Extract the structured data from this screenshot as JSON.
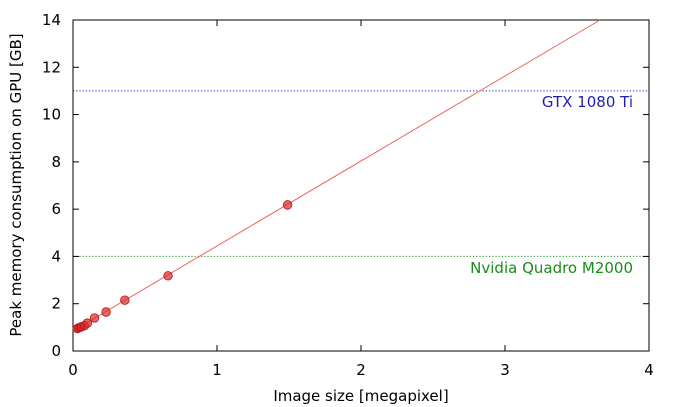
{
  "chart_data": {
    "type": "scatter",
    "xlabel": "Image size  [megapixel]",
    "ylabel": "Peak memory consumption on GPU  [GB]",
    "xlim": [
      0,
      4
    ],
    "ylim": [
      0,
      14
    ],
    "xticks": [
      0,
      1,
      2,
      3,
      4
    ],
    "yticks": [
      0,
      2,
      4,
      6,
      8,
      10,
      12,
      14
    ],
    "grid": false,
    "series": [
      {
        "type": "scatter",
        "color": "#d62728",
        "points": [
          {
            "x": 0.03,
            "y": 0.95
          },
          {
            "x": 0.04,
            "y": 0.98
          },
          {
            "x": 0.05,
            "y": 1.0
          },
          {
            "x": 0.06,
            "y": 1.03
          },
          {
            "x": 0.08,
            "y": 1.07
          },
          {
            "x": 0.1,
            "y": 1.18
          },
          {
            "x": 0.15,
            "y": 1.4
          },
          {
            "x": 0.23,
            "y": 1.65
          },
          {
            "x": 0.36,
            "y": 2.15
          },
          {
            "x": 0.66,
            "y": 3.18
          },
          {
            "x": 1.49,
            "y": 6.18
          }
        ]
      },
      {
        "type": "line",
        "color": "#e8665f",
        "x": [
          0.0,
          3.66
        ],
        "y": [
          0.85,
          14.0
        ]
      }
    ],
    "reference_lines": [
      {
        "label": "GTX 1080 Ti",
        "y": 11,
        "color": "#1f1fb4",
        "style": "dotted"
      },
      {
        "label": "Nvidia Quadro M2000",
        "y": 4,
        "color": "#1a8c1a",
        "style": "dotted"
      }
    ]
  }
}
